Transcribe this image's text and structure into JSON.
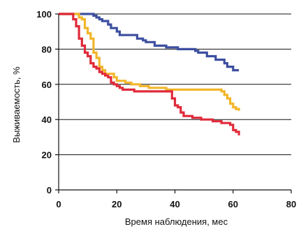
{
  "chart_data": {
    "type": "line",
    "title": "",
    "xlabel": "Время наблюдения, мес",
    "ylabel": "Выживаемость, %",
    "xlim": [
      0,
      80
    ],
    "ylim": [
      0,
      100
    ],
    "xticks": [
      0,
      20,
      40,
      60,
      80
    ],
    "yticks": [
      0,
      20,
      40,
      60,
      80,
      100
    ],
    "grid": "horizontal",
    "legend": "none",
    "series": [
      {
        "color": "#3d4fa0",
        "points": [
          [
            0,
            100
          ],
          [
            11,
            100
          ],
          [
            12,
            99
          ],
          [
            13,
            98
          ],
          [
            14,
            97
          ],
          [
            15,
            96
          ],
          [
            17,
            94
          ],
          [
            18,
            92
          ],
          [
            20,
            90
          ],
          [
            21,
            88
          ],
          [
            26,
            88
          ],
          [
            27,
            86
          ],
          [
            29,
            85
          ],
          [
            30,
            84
          ],
          [
            32,
            84
          ],
          [
            33,
            82
          ],
          [
            36,
            82
          ],
          [
            37,
            81
          ],
          [
            40,
            81
          ],
          [
            41,
            80
          ],
          [
            46,
            80
          ],
          [
            47,
            79
          ],
          [
            48,
            78
          ],
          [
            50,
            78
          ],
          [
            51,
            76
          ],
          [
            53,
            76
          ],
          [
            54,
            74
          ],
          [
            56,
            74
          ],
          [
            57,
            72
          ],
          [
            58,
            70
          ],
          [
            59,
            70
          ],
          [
            60,
            68
          ],
          [
            62,
            68
          ]
        ]
      },
      {
        "color": "#f2b62a",
        "points": [
          [
            0,
            100
          ],
          [
            6,
            100
          ],
          [
            7,
            98
          ],
          [
            8,
            97
          ],
          [
            9,
            92
          ],
          [
            10,
            89
          ],
          [
            11,
            86
          ],
          [
            12,
            78
          ],
          [
            13,
            75
          ],
          [
            14,
            70
          ],
          [
            15,
            68
          ],
          [
            16,
            66
          ],
          [
            18,
            66
          ],
          [
            19,
            64
          ],
          [
            20,
            62
          ],
          [
            22,
            62
          ],
          [
            23,
            61
          ],
          [
            25,
            60
          ],
          [
            27,
            60
          ],
          [
            28,
            59
          ],
          [
            30,
            59
          ],
          [
            31,
            58
          ],
          [
            36,
            58
          ],
          [
            37,
            57
          ],
          [
            55,
            57
          ],
          [
            56,
            56
          ],
          [
            57,
            54
          ],
          [
            58,
            52
          ],
          [
            59,
            49
          ],
          [
            60,
            47
          ],
          [
            61,
            46
          ],
          [
            62,
            45
          ]
        ]
      },
      {
        "color": "#e02a3a",
        "points": [
          [
            0,
            100
          ],
          [
            4,
            100
          ],
          [
            5,
            97
          ],
          [
            6,
            93
          ],
          [
            7,
            86
          ],
          [
            8,
            82
          ],
          [
            9,
            78
          ],
          [
            10,
            76
          ],
          [
            11,
            72
          ],
          [
            12,
            70
          ],
          [
            13,
            69
          ],
          [
            14,
            67
          ],
          [
            15,
            66
          ],
          [
            16,
            65
          ],
          [
            17,
            64
          ],
          [
            18,
            61
          ],
          [
            19,
            60
          ],
          [
            20,
            59
          ],
          [
            21,
            58
          ],
          [
            22,
            57
          ],
          [
            25,
            57
          ],
          [
            26,
            56
          ],
          [
            38,
            56
          ],
          [
            39,
            52
          ],
          [
            40,
            48
          ],
          [
            41,
            47
          ],
          [
            42,
            44
          ],
          [
            43,
            42
          ],
          [
            45,
            42
          ],
          [
            46,
            41
          ],
          [
            49,
            40
          ],
          [
            50,
            40
          ],
          [
            53,
            39
          ],
          [
            56,
            38
          ],
          [
            59,
            37
          ],
          [
            60,
            34
          ],
          [
            61,
            33
          ],
          [
            62,
            31
          ]
        ]
      }
    ]
  }
}
